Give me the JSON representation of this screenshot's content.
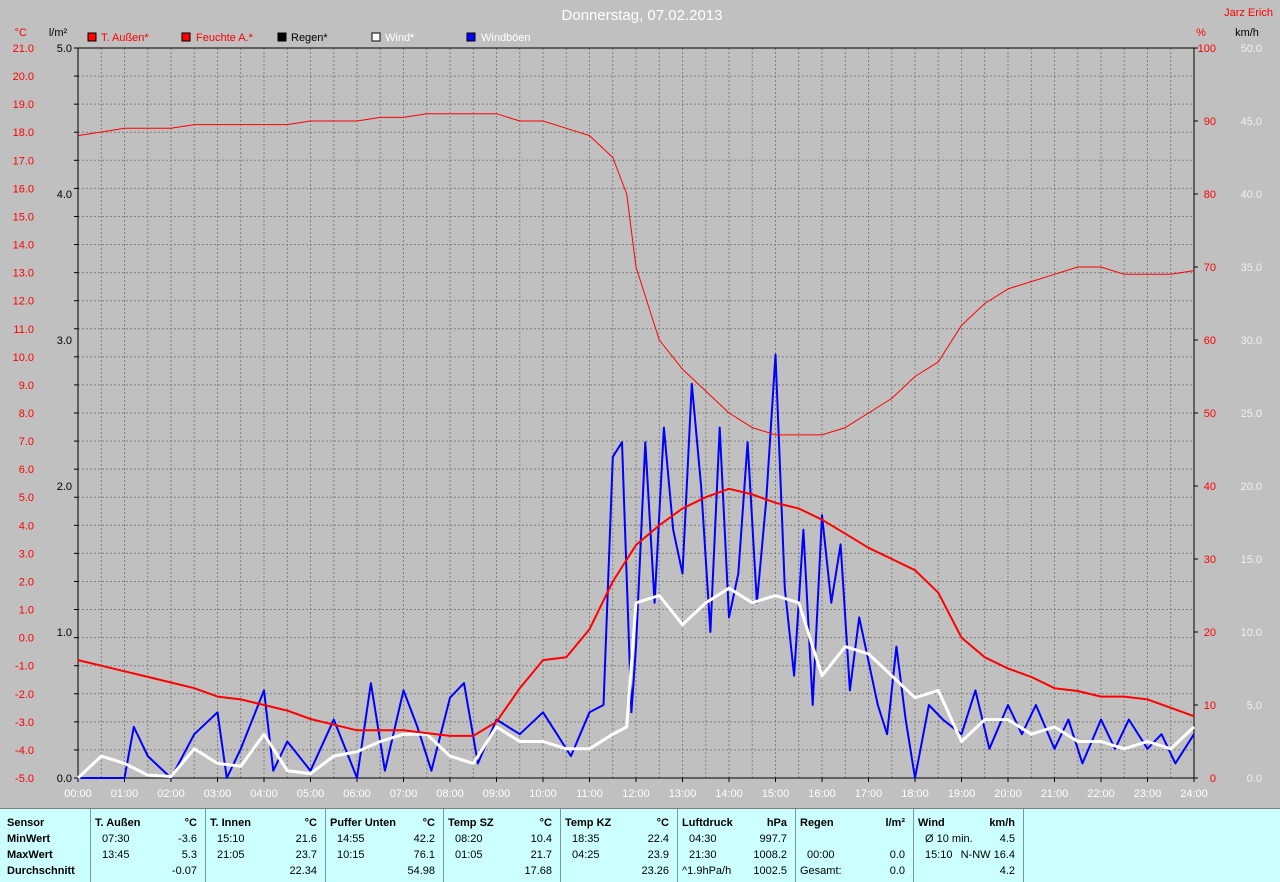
{
  "title": "Donnerstag, 07.02.2013",
  "station": "Jarz Erich",
  "units": {
    "temp": "°C",
    "rain": "l/m²",
    "hum": "%",
    "wind": "km/h"
  },
  "legend": [
    {
      "label": "T. Außen*",
      "color": "#ff0000"
    },
    {
      "label": "Feuchte A.*",
      "color": "#ff0000"
    },
    {
      "label": "Regen*",
      "color": "#000000"
    },
    {
      "label": "Wind*",
      "color": "#ffffff"
    },
    {
      "label": "Windböen",
      "color": "#0000ff"
    }
  ],
  "axis_labels": {
    "temp": [
      "21.0",
      "20.0",
      "19.0",
      "18.0",
      "17.0",
      "16.0",
      "15.0",
      "14.0",
      "13.0",
      "12.0",
      "11.0",
      "10.0",
      "9.0",
      "8.0",
      "7.0",
      "6.0",
      "5.0",
      "4.0",
      "3.0",
      "2.0",
      "1.0",
      "0.0",
      "-1.0",
      "-2.0",
      "-3.0",
      "-4.0",
      "-5.0"
    ],
    "rain": [
      "5.0",
      "4.0",
      "3.0",
      "2.0",
      "1.0",
      "0.0"
    ],
    "hum": [
      "100",
      "90",
      "80",
      "70",
      "60",
      "50",
      "40",
      "30",
      "20",
      "10",
      "0"
    ],
    "wind": [
      "50.0",
      "45.0",
      "40.0",
      "35.0",
      "30.0",
      "25.0",
      "20.0",
      "15.0",
      "10.0",
      "5.0",
      "0.0"
    ],
    "time": [
      "00:00",
      "01:00",
      "02:00",
      "03:00",
      "04:00",
      "05:00",
      "06:00",
      "07:00",
      "08:00",
      "09:00",
      "10:00",
      "11:00",
      "12:00",
      "13:00",
      "14:00",
      "15:00",
      "16:00",
      "17:00",
      "18:00",
      "19:00",
      "20:00",
      "21:00",
      "22:00",
      "23:00",
      "24:00"
    ]
  },
  "chart_data": {
    "type": "line",
    "x_unit": "hour",
    "axes": {
      "temp_ylim": [
        -5,
        21
      ],
      "rain_ylim": [
        0,
        5
      ],
      "hum_ylim": [
        0,
        100
      ],
      "wind_ylim": [
        0,
        50
      ],
      "x_range": [
        "00:00",
        "24:00"
      ]
    },
    "grid": true,
    "series": [
      {
        "name": "T. Außen*",
        "axis": "temp",
        "color": "#ff0000",
        "x": [
          0,
          0.5,
          1,
          1.5,
          2,
          2.5,
          3,
          3.5,
          4,
          4.5,
          5,
          5.5,
          6,
          6.5,
          7,
          7.5,
          8,
          8.5,
          9,
          9.5,
          10,
          10.5,
          11,
          11.5,
          12,
          12.5,
          13,
          13.5,
          14,
          14.5,
          15,
          15.5,
          16,
          16.5,
          17,
          17.5,
          18,
          18.5,
          19,
          19.5,
          20,
          20.5,
          21,
          21.5,
          22,
          22.5,
          23,
          23.5,
          24
        ],
        "values": [
          -0.8,
          -1.0,
          -1.2,
          -1.4,
          -1.6,
          -1.8,
          -2.1,
          -2.2,
          -2.4,
          -2.6,
          -2.9,
          -3.1,
          -3.3,
          -3.3,
          -3.3,
          -3.4,
          -3.5,
          -3.5,
          -3.0,
          -1.8,
          -0.8,
          -0.7,
          0.3,
          2.0,
          3.3,
          4.0,
          4.6,
          5.0,
          5.3,
          5.1,
          4.8,
          4.6,
          4.2,
          3.7,
          3.2,
          2.8,
          2.4,
          1.6,
          0.0,
          -0.7,
          -1.1,
          -1.4,
          -1.8,
          -1.9,
          -2.1,
          -2.1,
          -2.2,
          -2.5,
          -2.8
        ]
      },
      {
        "name": "Feuchte A.*",
        "axis": "hum",
        "color": "#ff0000",
        "x": [
          0,
          0.5,
          1,
          1.5,
          2,
          2.5,
          3,
          3.5,
          4,
          4.5,
          5,
          5.5,
          6,
          6.5,
          7,
          7.5,
          8,
          8.5,
          9,
          9.5,
          10,
          10.5,
          11,
          11.5,
          11.8,
          12,
          12.5,
          13,
          13.5,
          14,
          14.5,
          15,
          15.5,
          16,
          16.5,
          17,
          17.5,
          18,
          18.5,
          19,
          19.5,
          20,
          20.5,
          21,
          21.5,
          22,
          22.5,
          23,
          23.5,
          24
        ],
        "values": [
          88,
          88.5,
          89,
          89,
          89,
          89.5,
          89.5,
          89.5,
          89.5,
          89.5,
          90,
          90,
          90,
          90.5,
          90.5,
          91,
          91,
          91,
          91,
          90,
          90,
          89,
          88,
          85,
          80,
          70,
          60,
          56,
          53,
          50,
          48,
          47,
          47,
          47,
          48,
          50,
          52,
          55,
          57,
          62,
          65,
          67,
          68,
          69,
          70,
          70,
          69,
          69,
          69,
          69.5
        ]
      },
      {
        "name": "Regen*",
        "axis": "rain",
        "color": "#000000",
        "x": [
          0,
          24
        ],
        "values": [
          0.0,
          0.0
        ]
      },
      {
        "name": "Wind*",
        "axis": "wind",
        "color": "#ffffff",
        "x": [
          0,
          0.5,
          1,
          1.5,
          2,
          2.5,
          3,
          3.5,
          4,
          4.5,
          5,
          5.5,
          6,
          6.5,
          7,
          7.5,
          8,
          8.5,
          9,
          9.5,
          10,
          10.5,
          11,
          11.5,
          11.8,
          12,
          12.5,
          13,
          13.5,
          14,
          14.5,
          15,
          15.5,
          16,
          16.5,
          17,
          17.5,
          18,
          18.5,
          19,
          19.5,
          20,
          20.5,
          21,
          21.5,
          22,
          22.5,
          23,
          23.5,
          24
        ],
        "values": [
          0,
          1.5,
          1.0,
          0.2,
          0.1,
          2.0,
          1.0,
          0.8,
          3.0,
          0.5,
          0.3,
          1.5,
          1.8,
          2.5,
          3.0,
          3.0,
          1.5,
          1.0,
          3.5,
          2.5,
          2.5,
          2.0,
          2.0,
          3.0,
          3.5,
          12.0,
          12.5,
          10.5,
          12.0,
          13.0,
          12.0,
          12.5,
          12.0,
          7.0,
          9.0,
          8.5,
          7.0,
          5.5,
          6.0,
          2.5,
          4.0,
          4.0,
          3.0,
          3.5,
          2.5,
          2.5,
          2.0,
          2.5,
          2.0,
          3.5
        ]
      },
      {
        "name": "Windböen",
        "axis": "wind",
        "color": "#0000ff",
        "x": [
          0,
          0.5,
          1,
          1.2,
          1.5,
          2,
          2.5,
          3,
          3.2,
          3.5,
          4,
          4.2,
          4.5,
          5,
          5.5,
          6,
          6.3,
          6.6,
          7,
          7.3,
          7.6,
          8,
          8.3,
          8.6,
          9,
          9.5,
          10,
          10.3,
          10.6,
          11,
          11.3,
          11.5,
          11.7,
          11.9,
          12,
          12.2,
          12.4,
          12.6,
          12.8,
          13,
          13.2,
          13.4,
          13.6,
          13.8,
          14,
          14.2,
          14.4,
          14.6,
          14.8,
          15,
          15.2,
          15.4,
          15.6,
          15.8,
          16,
          16.2,
          16.4,
          16.6,
          16.8,
          17,
          17.2,
          17.4,
          17.6,
          17.8,
          18,
          18.3,
          18.6,
          19,
          19.3,
          19.6,
          20,
          20.3,
          20.6,
          21,
          21.3,
          21.6,
          22,
          22.3,
          22.6,
          23,
          23.3,
          23.6,
          24
        ],
        "values": [
          0,
          0,
          0,
          3.5,
          1.5,
          0,
          3.0,
          4.5,
          0,
          2.0,
          6.0,
          0.5,
          2.5,
          0.5,
          4.0,
          0,
          6.5,
          0.5,
          6.0,
          3.5,
          0.5,
          5.5,
          6.5,
          1.0,
          4.0,
          3.0,
          4.5,
          3.0,
          1.5,
          4.5,
          5.0,
          22,
          23,
          4.5,
          9,
          23,
          12,
          24,
          17,
          14,
          27,
          20,
          10,
          24,
          11,
          14,
          23,
          12,
          19,
          29,
          13,
          7,
          17,
          5,
          18,
          12,
          16,
          6,
          11,
          8,
          5,
          3,
          9,
          4,
          0,
          5,
          4,
          3,
          6,
          2,
          5,
          3,
          5,
          2,
          4,
          1,
          4,
          2,
          4,
          2,
          3,
          1,
          3
        ]
      }
    ]
  },
  "table": {
    "rows": [
      "MinWert",
      "MaxWert",
      "Durchschnitt"
    ],
    "sensor_label": "Sensor",
    "columns": [
      {
        "name": "T. Außen",
        "unit": "°C",
        "min_time": "07:30",
        "min": "-3.6",
        "max_time": "13:45",
        "max": "5.3",
        "avg": "-0.07"
      },
      {
        "name": "T. Innen",
        "unit": "°C",
        "min_time": "15:10",
        "min": "21.6",
        "max_time": "21:05",
        "max": "23.7",
        "avg": "22.34"
      },
      {
        "name": "Puffer Unten",
        "unit": "°C",
        "min_time": "14:55",
        "min": "42.2",
        "max_time": "10:15",
        "max": "76.1",
        "avg": "54.98"
      },
      {
        "name": "Temp SZ",
        "unit": "°C",
        "min_time": "08:20",
        "min": "10.4",
        "max_time": "01:05",
        "max": "21.7",
        "avg": "17.68"
      },
      {
        "name": "Temp KZ",
        "unit": "°C",
        "min_time": "18:35",
        "min": "22.4",
        "max_time": "04:25",
        "max": "23.9",
        "avg": "23.26"
      },
      {
        "name": "Luftdruck",
        "unit": "hPa",
        "min_time": "04:30",
        "min": "997.7",
        "max_time": "21:30",
        "max": "1008.2",
        "avg_prefix": "^1.9hPa/h",
        "avg": "1002.5"
      },
      {
        "name": "Regen",
        "unit": "l/m²",
        "min_time": "",
        "min": "",
        "max_time": "00:00",
        "max": "0.0",
        "avg_prefix": "Gesamt:",
        "avg": "0.0"
      },
      {
        "name": "Wind",
        "unit": "km/h",
        "min_time": "Ø 10 min.",
        "min": "4.5",
        "max_time": "15:10",
        "max": "N-NW 16.4",
        "avg": "4.2"
      }
    ]
  }
}
